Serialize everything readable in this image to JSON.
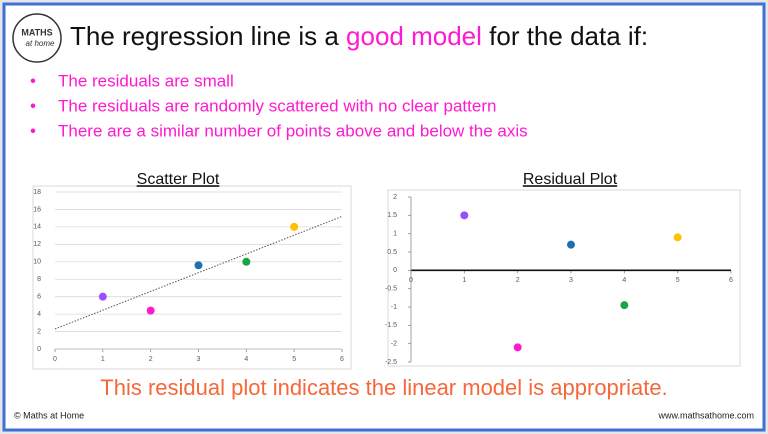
{
  "logo": {
    "top": "MATHS",
    "bottom": "at home"
  },
  "header": {
    "title_parts": [
      "The regression line is a ",
      "good model",
      " for the data if:"
    ]
  },
  "bullets": [
    "The residuals are small",
    "The residuals are randomly scattered with no clear pattern",
    "There are a similar number of points above and below the axis"
  ],
  "conclusion": "This residual plot indicates the linear model is appropriate.",
  "footer": {
    "left": "© Maths at Home",
    "right": "www.mathsathome.com"
  },
  "chart_data": [
    {
      "type": "scatter",
      "title": "Scatter Plot",
      "x": [
        1,
        2,
        3,
        4,
        5
      ],
      "values": [
        6,
        4.4,
        9.6,
        10,
        14
      ],
      "colors": [
        "#9b4dff",
        "#ff19d0",
        "#1f6fb5",
        "#1aa54a",
        "#ffc000"
      ],
      "xlim": [
        0,
        6
      ],
      "ylim": [
        0,
        18
      ],
      "xticks": [
        0,
        1,
        2,
        3,
        4,
        5,
        6
      ],
      "yticks": [
        0,
        2,
        4,
        6,
        8,
        10,
        12,
        14,
        16,
        18
      ],
      "grid": true,
      "trendline": {
        "x": [
          0,
          6
        ],
        "values": [
          2.3,
          15.2
        ]
      }
    },
    {
      "type": "scatter",
      "title": "Residual Plot",
      "x": [
        1,
        2,
        3,
        4,
        5
      ],
      "values": [
        1.5,
        -2.1,
        0.7,
        -0.95,
        0.9
      ],
      "colors": [
        "#9b4dff",
        "#ff19d0",
        "#1f6fb5",
        "#1aa54a",
        "#ffc000"
      ],
      "xlim": [
        0,
        6
      ],
      "ylim": [
        -2.5,
        2
      ],
      "xticks": [
        0,
        1,
        2,
        3,
        4,
        5,
        6
      ],
      "yticks": [
        -2.5,
        -2,
        -1.5,
        -1,
        -0.5,
        0,
        0.5,
        1,
        1.5,
        2
      ],
      "grid": false
    }
  ]
}
